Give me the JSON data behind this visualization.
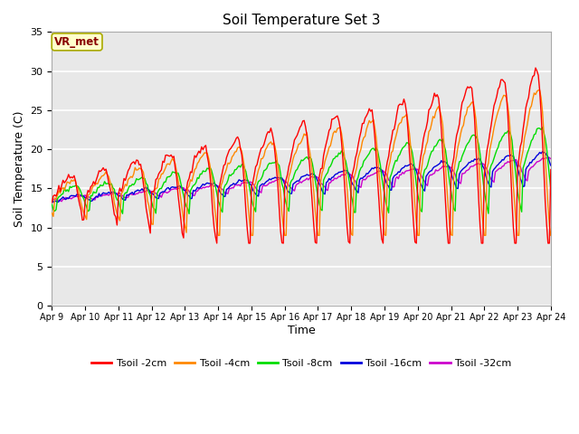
{
  "title": "Soil Temperature Set 3",
  "xlabel": "Time",
  "ylabel": "Soil Temperature (C)",
  "xlim": [
    0,
    360
  ],
  "ylim": [
    0,
    35
  ],
  "yticks": [
    0,
    5,
    10,
    15,
    20,
    25,
    30,
    35
  ],
  "xtick_labels": [
    "Apr 9",
    "Apr 10",
    "Apr 11",
    "Apr 12",
    "Apr 13",
    "Apr 14",
    "Apr 15",
    "Apr 16",
    "Apr 17",
    "Apr 18",
    "Apr 19",
    "Apr 20",
    "Apr 21",
    "Apr 22",
    "Apr 23",
    "Apr 24"
  ],
  "xtick_positions": [
    0,
    24,
    48,
    72,
    96,
    120,
    144,
    168,
    192,
    216,
    240,
    264,
    288,
    312,
    336,
    360
  ],
  "fig_bg_color": "#ffffff",
  "plot_bg_color": "#e8e8e8",
  "grid_color": "#ffffff",
  "line_colors": {
    "Tsoil -2cm": "#ff0000",
    "Tsoil -4cm": "#ff8800",
    "Tsoil -8cm": "#00dd00",
    "Tsoil -16cm": "#0000dd",
    "Tsoil -32cm": "#cc00cc"
  },
  "legend_label": "VR_met",
  "legend_bg": "#ffffcc",
  "legend_border": "#aaaa00",
  "legend_text_color": "#880000"
}
